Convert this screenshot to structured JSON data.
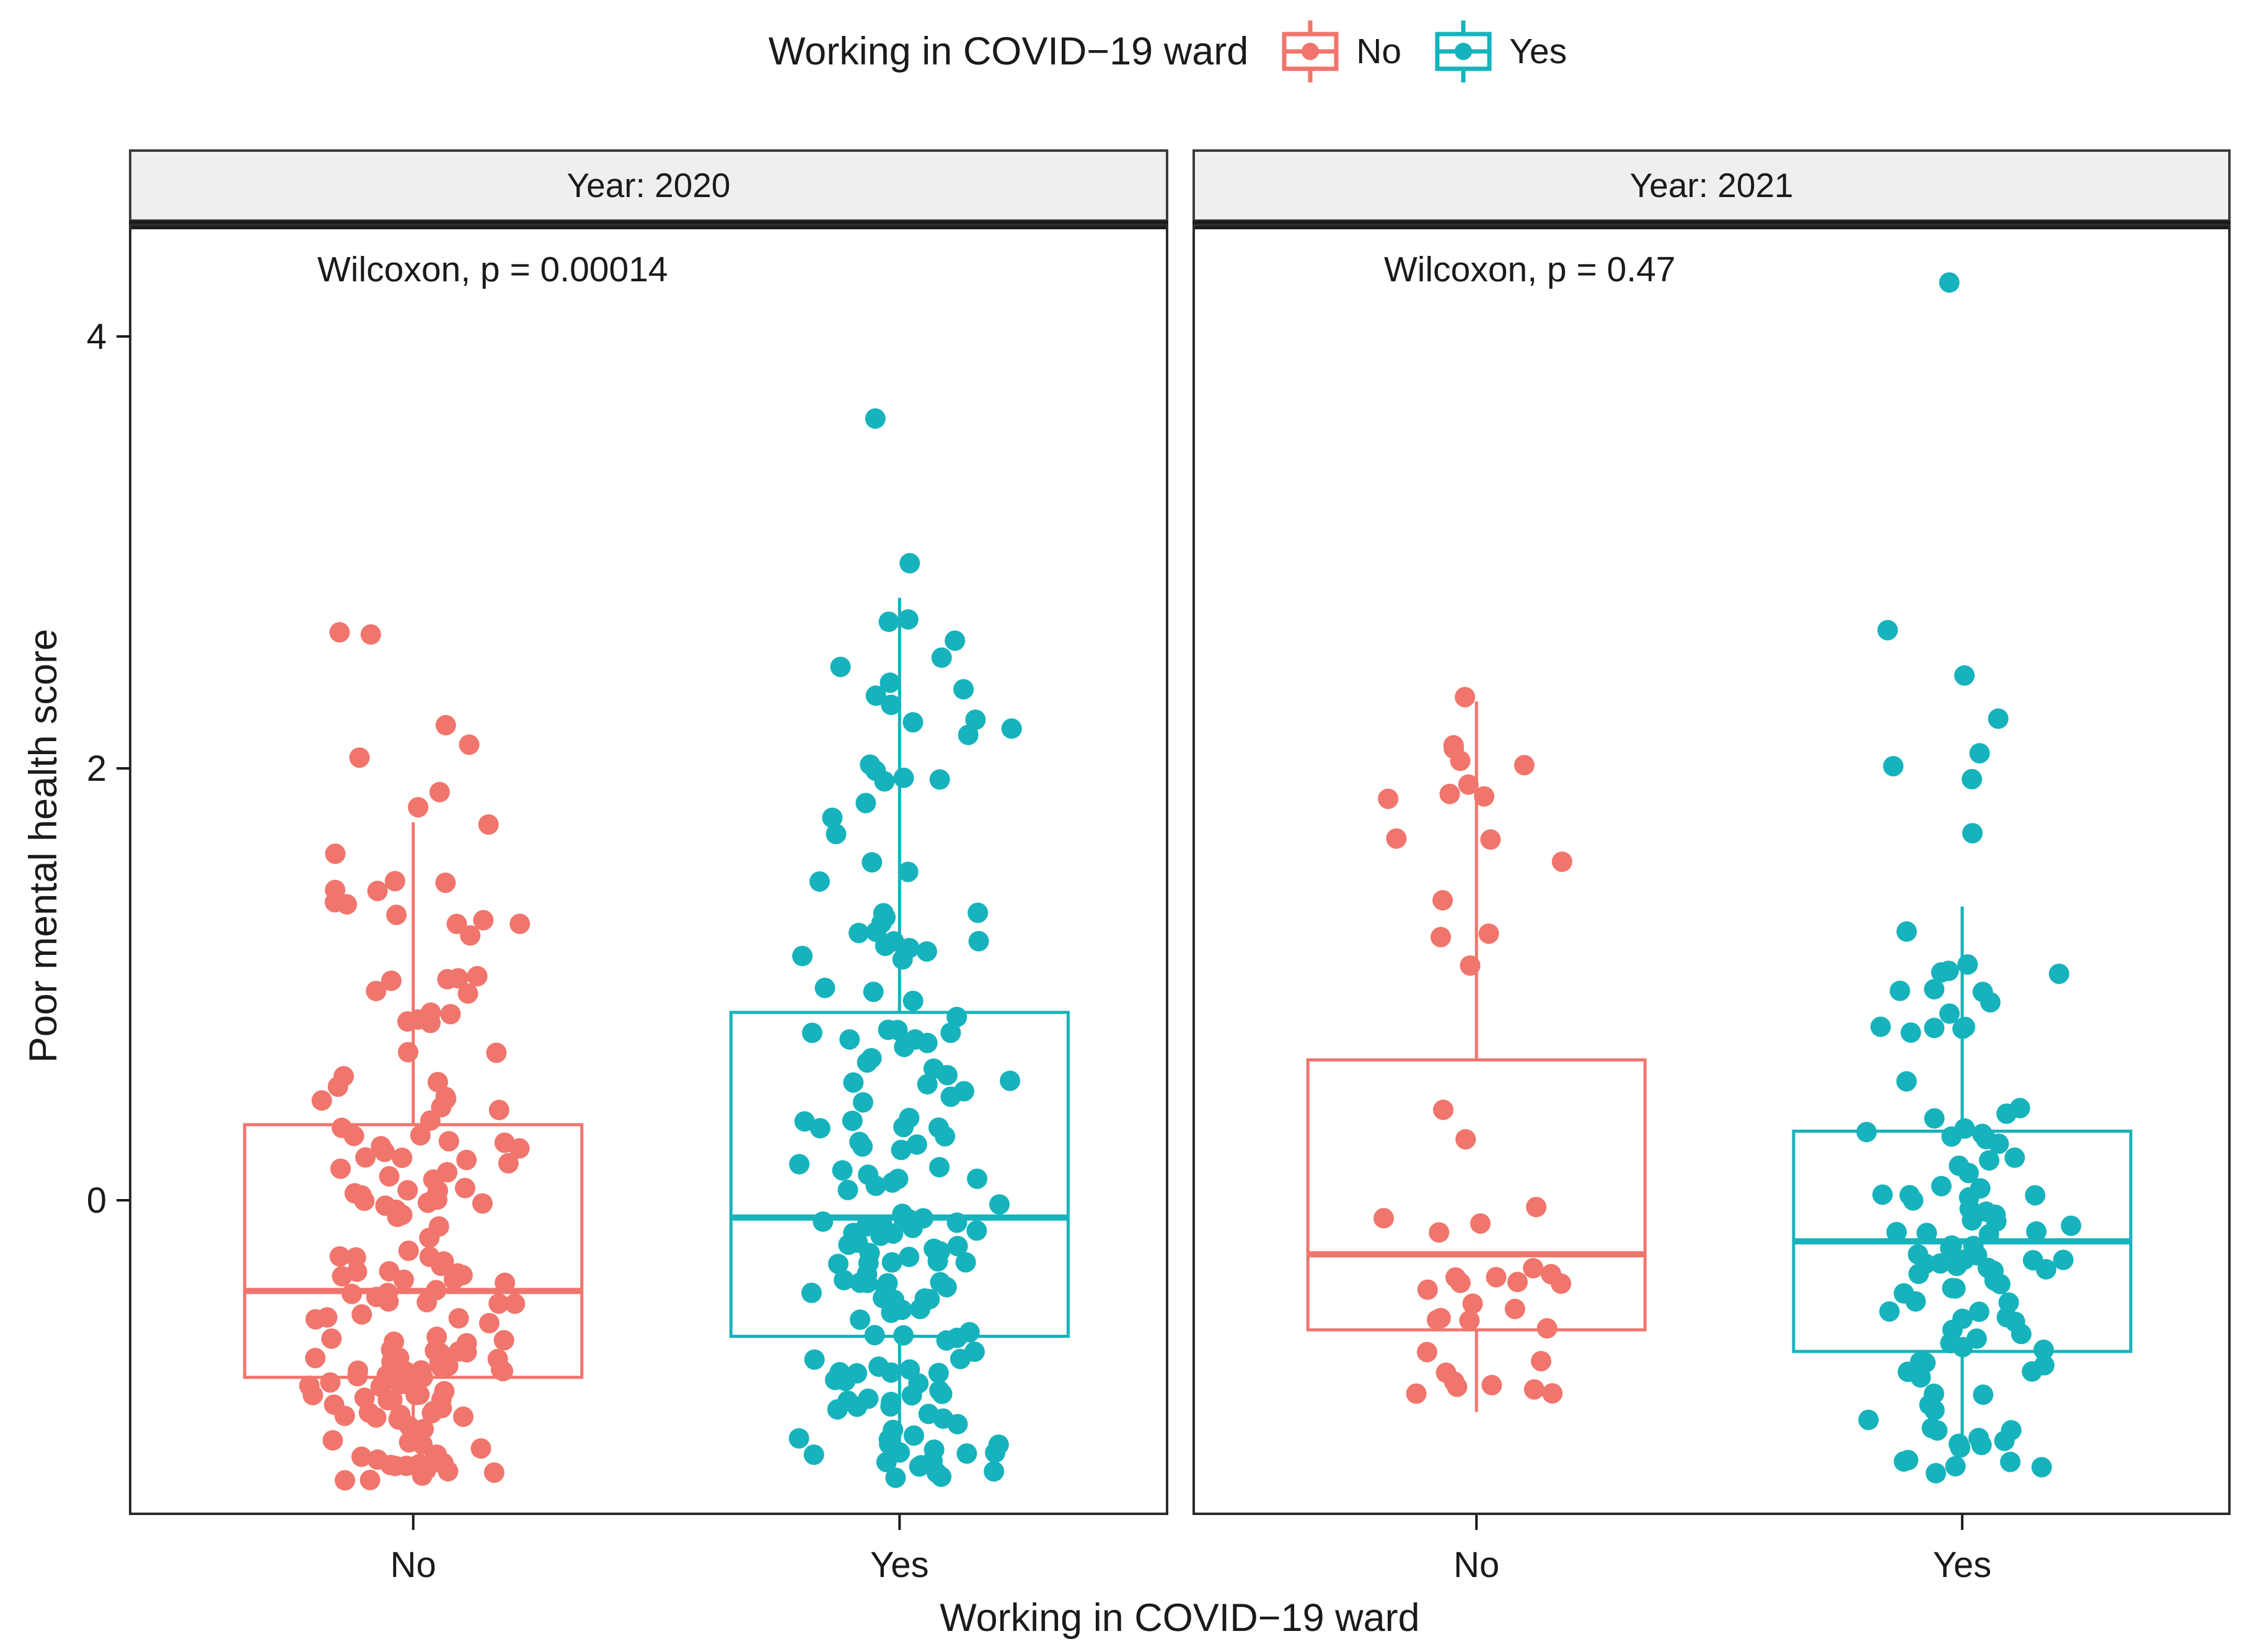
{
  "legend": {
    "title": "Working in COVID−19 ward",
    "items": [
      {
        "label": "No",
        "color": "#F0756C"
      },
      {
        "label": "Yes",
        "color": "#16B3BC"
      }
    ]
  },
  "axes": {
    "y_title": "Poor mental health score",
    "x_title": "Working in COVID−19 ward",
    "y_ticks": [
      0,
      2,
      4
    ],
    "x_categories": [
      "No",
      "Yes"
    ]
  },
  "colors": {
    "no": "#F0756C",
    "yes": "#16B3BC",
    "strip_fill": "#EFEFEF",
    "strip_border": "#3c3c3c",
    "panel_border": "#2b2b2b",
    "band": "#1a1a1a",
    "text": "#1a1a1a"
  },
  "chart_data": {
    "type": "boxplot-jitter",
    "ylim": [
      -1.44,
      4.5
    ],
    "y_ticks": [
      0,
      2,
      4
    ],
    "legend_position": "top",
    "grid": false,
    "facets": [
      {
        "label": "Year: 2020",
        "annotation": "Wilcoxon, p = 0.00014",
        "groups": [
          {
            "category": "No",
            "color": "#F0756C",
            "n": 168,
            "min": -1.3,
            "seed": 7,
            "box": {
              "lower_whisker": -1.15,
              "q1": -0.82,
              "median": -0.42,
              "q3": 0.35,
              "upper_whisker": 1.75
            },
            "outliers": [
              1.82,
              1.89,
              2.05,
              2.11,
              2.2,
              2.62,
              2.63
            ]
          },
          {
            "category": "Yes",
            "color": "#16B3BC",
            "n": 170,
            "min": -1.32,
            "seed": 13,
            "box": {
              "lower_whisker": -1.17,
              "q1": -0.63,
              "median": -0.08,
              "q3": 0.87,
              "upper_whisker": 2.79
            },
            "outliers": [
              3.62,
              2.95,
              2.47
            ]
          }
        ]
      },
      {
        "label": "Year: 2021",
        "annotation": "Wilcoxon, p = 0.47",
        "groups": [
          {
            "category": "No",
            "color": "#F0756C",
            "n": 44,
            "min": -1.25,
            "seed": 3,
            "box": {
              "lower_whisker": -0.98,
              "q1": -0.6,
              "median": -0.25,
              "q3": 0.65,
              "upper_whisker": 2.31
            },
            "outliers": [
              2.33
            ]
          },
          {
            "category": "Yes",
            "color": "#16B3BC",
            "n": 104,
            "min": -1.34,
            "seed": 21,
            "box": {
              "lower_whisker": -1.13,
              "q1": -0.7,
              "median": -0.19,
              "q3": 0.32,
              "upper_whisker": 1.36
            },
            "outliers": [
              4.25,
              2.64,
              2.43,
              2.23,
              2.07,
              2.01,
              1.95,
              1.7
            ]
          }
        ]
      }
    ]
  }
}
